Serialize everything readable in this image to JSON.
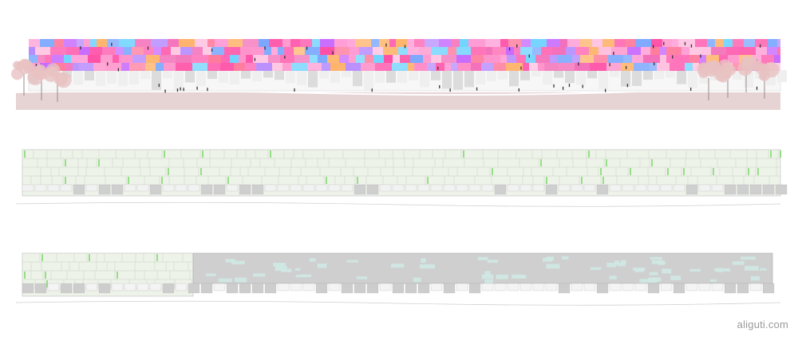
{
  "image": {
    "description_kind": "architectural facade elevations",
    "watermark": "aliguti.com"
  },
  "elevations": [
    {
      "style": "colour",
      "palette": [
        "#ff5fb0",
        "#ff4fa6",
        "#ff8ec9",
        "#c86bff",
        "#ff9ad5",
        "#7aa7ff",
        "#ffb36b",
        "#6fd3ff",
        "#f36fb9",
        "#ffc1e0",
        "#b78cff",
        "#ff7a9c"
      ],
      "ground_color": "#e6d3d3",
      "tree_color": "#e9c2c2"
    },
    {
      "style": "green-line",
      "panel_color": "#eef3ea",
      "accent_color": "#7fd86b"
    },
    {
      "style": "green-grey",
      "panel_color": "#eef3ea",
      "accent_color": "#7fd86b",
      "grey_color": "#cfcfcf",
      "window_color": "#cfe8e3"
    }
  ]
}
